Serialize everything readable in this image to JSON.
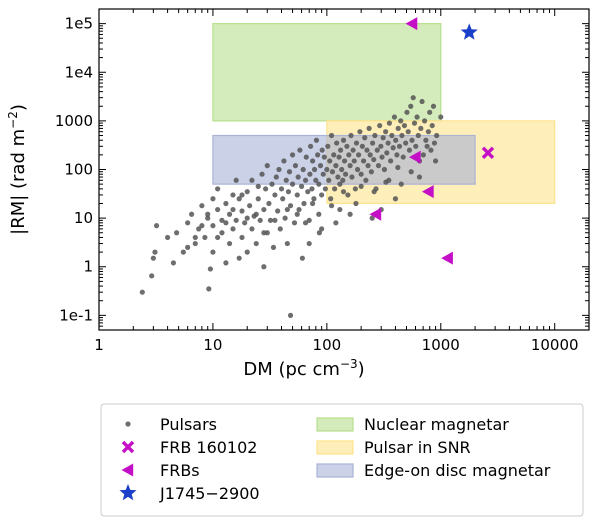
{
  "chart_data": {
    "type": "scatter",
    "x_scale": "log",
    "y_scale": "log",
    "xlim": [
      1,
      20000
    ],
    "ylim": [
      0.05,
      200000
    ],
    "x_ticks": [
      1,
      10,
      100,
      1000,
      10000
    ],
    "x_tick_labels": [
      "1",
      "10",
      "100",
      "1000",
      "10000"
    ],
    "y_ticks": [
      0.1,
      1,
      10,
      100,
      1000,
      10000,
      100000
    ],
    "y_tick_labels": [
      "1e-1",
      "1",
      "10",
      "100",
      "1000",
      "1e4",
      "1e5"
    ],
    "xlabel": "DM (pc cm",
    "xlabel_sup": "−3",
    "xlabel_end": ")",
    "ylabel": "|RM| (rad m",
    "ylabel_sup": "−2",
    "ylabel_end": ")",
    "regions": [
      {
        "name": "Nuclear magnetar",
        "x": [
          10,
          1000
        ],
        "y": [
          1000,
          100000
        ],
        "color": "#b8df8e"
      },
      {
        "name": "Pulsar in SNR",
        "x": [
          100,
          10000
        ],
        "y": [
          20,
          1000
        ],
        "color": "#fde38c"
      },
      {
        "name": "Edge-on disc magnetar",
        "x": [
          10,
          2000
        ],
        "y": [
          50,
          500
        ],
        "color": "#a9b3d6"
      }
    ],
    "series": [
      {
        "name": "Pulsars",
        "marker": "dot",
        "color": "#555555",
        "points": [
          [
            2.4,
            0.3
          ],
          [
            2.9,
            0.65
          ],
          [
            3.0,
            1.5
          ],
          [
            3.1,
            2.0
          ],
          [
            3.2,
            7
          ],
          [
            4.0,
            4
          ],
          [
            4.5,
            1.2
          ],
          [
            4.8,
            5
          ],
          [
            5.5,
            2
          ],
          [
            6,
            8
          ],
          [
            6.5,
            12
          ],
          [
            7,
            3
          ],
          [
            7.5,
            6
          ],
          [
            8,
            18
          ],
          [
            8.5,
            4
          ],
          [
            9,
            10
          ],
          [
            9.2,
            0.35
          ],
          [
            9.5,
            0.9
          ],
          [
            10,
            2
          ],
          [
            10,
            7
          ],
          [
            11,
            15
          ],
          [
            11,
            40
          ],
          [
            12,
            5
          ],
          [
            12,
            9
          ],
          [
            13,
            20
          ],
          [
            13,
            1.2
          ],
          [
            14,
            3
          ],
          [
            14,
            12
          ],
          [
            15,
            30
          ],
          [
            15,
            6
          ],
          [
            16,
            60
          ],
          [
            16,
            9
          ],
          [
            17,
            1.5
          ],
          [
            17,
            25
          ],
          [
            18,
            4
          ],
          [
            18,
            14
          ],
          [
            19,
            8
          ],
          [
            20,
            35
          ],
          [
            20,
            2
          ],
          [
            21,
            18
          ],
          [
            22,
            60
          ],
          [
            22,
            6
          ],
          [
            23,
            11
          ],
          [
            24,
            3
          ],
          [
            25,
            25
          ],
          [
            25,
            45
          ],
          [
            26,
            9
          ],
          [
            27,
            80
          ],
          [
            28,
            15
          ],
          [
            28,
            1
          ],
          [
            29,
            40
          ],
          [
            30,
            5
          ],
          [
            30,
            120
          ],
          [
            31,
            20
          ],
          [
            32,
            9
          ],
          [
            33,
            50
          ],
          [
            34,
            2.5
          ],
          [
            35,
            30
          ],
          [
            36,
            70
          ],
          [
            37,
            14
          ],
          [
            38,
            100
          ],
          [
            39,
            6
          ],
          [
            40,
            40
          ],
          [
            41,
            25
          ],
          [
            42,
            150
          ],
          [
            43,
            10
          ],
          [
            44,
            60
          ],
          [
            45,
            3
          ],
          [
            46,
            35
          ],
          [
            47,
            90
          ],
          [
            48,
            18
          ],
          [
            48,
            0.1
          ],
          [
            50,
            50
          ],
          [
            50,
            200
          ],
          [
            52,
            8
          ],
          [
            53,
            120
          ],
          [
            55,
            30
          ],
          [
            56,
            70
          ],
          [
            57,
            15
          ],
          [
            58,
            250
          ],
          [
            60,
            45
          ],
          [
            61,
            1.5
          ],
          [
            62,
            100
          ],
          [
            63,
            20
          ],
          [
            65,
            60
          ],
          [
            66,
            180
          ],
          [
            68,
            35
          ],
          [
            70,
            9
          ],
          [
            71,
            80
          ],
          [
            72,
            300
          ],
          [
            74,
            40
          ],
          [
            75,
            150
          ],
          [
            77,
            25
          ],
          [
            78,
            100
          ],
          [
            80,
            60
          ],
          [
            81,
            400
          ],
          [
            83,
            200
          ],
          [
            85,
            50
          ],
          [
            86,
            5
          ],
          [
            88,
            120
          ],
          [
            90,
            30
          ],
          [
            91,
            250
          ],
          [
            93,
            80
          ],
          [
            95,
            180
          ],
          [
            97,
            40
          ],
          [
            100,
            100
          ],
          [
            102,
            300
          ],
          [
            104,
            60
          ],
          [
            106,
            150
          ],
          [
            108,
            25
          ],
          [
            110,
            500
          ],
          [
            112,
            90
          ],
          [
            115,
            200
          ],
          [
            117,
            40
          ],
          [
            120,
            120
          ],
          [
            122,
            350
          ],
          [
            125,
            70
          ],
          [
            128,
            180
          ],
          [
            130,
            15
          ],
          [
            132,
            250
          ],
          [
            135,
            100
          ],
          [
            138,
            60
          ],
          [
            140,
            400
          ],
          [
            143,
            150
          ],
          [
            146,
            80
          ],
          [
            150,
            300
          ],
          [
            153,
            30
          ],
          [
            156,
            200
          ],
          [
            160,
            120
          ],
          [
            163,
            500
          ],
          [
            166,
            70
          ],
          [
            170,
            250
          ],
          [
            174,
            150
          ],
          [
            178,
            40
          ],
          [
            182,
            350
          ],
          [
            186,
            100
          ],
          [
            190,
            200
          ],
          [
            195,
            600
          ],
          [
            200,
            80
          ],
          [
            205,
            300
          ],
          [
            210,
            150
          ],
          [
            215,
            450
          ],
          [
            220,
            60
          ],
          [
            225,
            250
          ],
          [
            230,
            120
          ],
          [
            235,
            700
          ],
          [
            240,
            200
          ],
          [
            246,
            90
          ],
          [
            252,
            350
          ],
          [
            258,
            160
          ],
          [
            264,
            500
          ],
          [
            270,
            40
          ],
          [
            277,
            250
          ],
          [
            284,
            120
          ],
          [
            291,
            800
          ],
          [
            298,
            300
          ],
          [
            305,
            180
          ],
          [
            312,
            450
          ],
          [
            320,
            100
          ],
          [
            328,
            600
          ],
          [
            336,
            220
          ],
          [
            345,
            350
          ],
          [
            354,
            900
          ],
          [
            363,
            150
          ],
          [
            372,
            500
          ],
          [
            382,
            280
          ],
          [
            392,
            1200
          ],
          [
            402,
            400
          ],
          [
            412,
            200
          ],
          [
            423,
            700
          ],
          [
            434,
            300
          ],
          [
            445,
            1000
          ],
          [
            456,
            500
          ],
          [
            468,
            180
          ],
          [
            480,
            800
          ],
          [
            492,
            350
          ],
          [
            505,
            1500
          ],
          [
            518,
            600
          ],
          [
            531,
            250
          ],
          [
            545,
            2000
          ],
          [
            559,
            400
          ],
          [
            573,
            3000
          ],
          [
            588,
            900
          ],
          [
            603,
            300
          ],
          [
            619,
            1200
          ],
          [
            635,
            500
          ],
          [
            651,
            150
          ],
          [
            668,
            700
          ],
          [
            685,
            2500
          ],
          [
            703,
            200
          ],
          [
            721,
            1000
          ],
          [
            740,
            400
          ],
          [
            759,
            300
          ],
          [
            779,
            600
          ],
          [
            799,
            1500
          ],
          [
            820,
            250
          ],
          [
            841,
            800
          ],
          [
            863,
            2000
          ],
          [
            880,
            350
          ],
          [
            920,
            500
          ],
          [
            1000,
            1200
          ],
          [
            350,
            60
          ],
          [
            300,
            15
          ],
          [
            250,
            10
          ],
          [
            400,
            25
          ],
          [
            160,
            12
          ],
          [
            120,
            8
          ],
          [
            90,
            6
          ],
          [
            70,
            3
          ],
          [
            180,
            20
          ],
          [
            450,
            50
          ],
          [
            550,
            90
          ],
          [
            650,
            70
          ],
          [
            900,
            150
          ],
          [
            140,
            35
          ],
          [
            110,
            18
          ],
          [
            85,
            12
          ],
          [
            200,
            45
          ],
          [
            260,
            35
          ],
          [
            330,
            55
          ],
          [
            420,
            110
          ],
          [
            130,
            50
          ],
          [
            75,
            20
          ],
          [
            55,
            12
          ],
          [
            65,
            8
          ],
          [
            45,
            15
          ],
          [
            35,
            9
          ],
          [
            28,
            5
          ],
          [
            24,
            12
          ],
          [
            20,
            10
          ],
          [
            18,
            30
          ],
          [
            15,
            15
          ],
          [
            13,
            8
          ],
          [
            11,
            4
          ],
          [
            10,
            25
          ],
          [
            9,
            12
          ],
          [
            8,
            7
          ],
          [
            7,
            4
          ],
          [
            6,
            2.5
          ]
        ]
      },
      {
        "name": "FRB 160102",
        "marker": "x",
        "color": "#c40fc6",
        "points": [
          [
            2596,
            220
          ]
        ]
      },
      {
        "name": "FRBs",
        "marker": "tri-left",
        "color": "#c40fc6",
        "points": [
          [
            560,
            100000
          ],
          [
            600,
            180
          ],
          [
            780,
            35
          ],
          [
            270,
            12
          ],
          [
            1150,
            1.5
          ]
        ]
      },
      {
        "name": "J1745−2900",
        "marker": "star",
        "color": "#1a3fc8",
        "points": [
          [
            1778,
            66000
          ]
        ]
      }
    ]
  },
  "legend": {
    "items": [
      {
        "label": "Pulsars",
        "kind": "dot",
        "color": "#555555"
      },
      {
        "label": "FRB 160102",
        "kind": "x",
        "color": "#c40fc6"
      },
      {
        "label": "FRBs",
        "kind": "tri-left",
        "color": "#c40fc6"
      },
      {
        "label": "J1745−2900",
        "kind": "star",
        "color": "#1a3fc8"
      },
      {
        "label": "Nuclear magnetar",
        "kind": "patch",
        "color": "#b8df8e"
      },
      {
        "label": "Pulsar in SNR",
        "kind": "patch",
        "color": "#fde38c"
      },
      {
        "label": "Edge-on disc magnetar",
        "kind": "patch",
        "color": "#a9b3d6"
      }
    ]
  }
}
